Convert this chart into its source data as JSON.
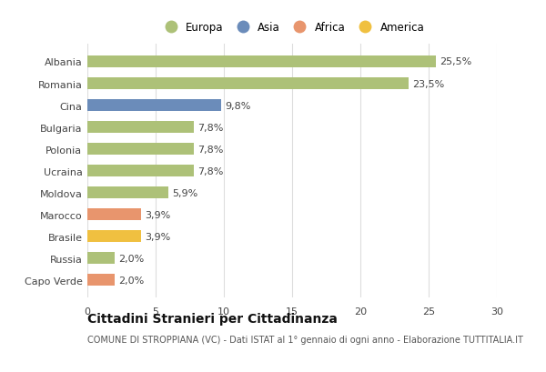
{
  "countries": [
    "Albania",
    "Romania",
    "Cina",
    "Bulgaria",
    "Polonia",
    "Ucraina",
    "Moldova",
    "Marocco",
    "Brasile",
    "Russia",
    "Capo Verde"
  ],
  "values": [
    25.5,
    23.5,
    9.8,
    7.8,
    7.8,
    7.8,
    5.9,
    3.9,
    3.9,
    2.0,
    2.0
  ],
  "labels": [
    "25,5%",
    "23,5%",
    "9,8%",
    "7,8%",
    "7,8%",
    "7,8%",
    "5,9%",
    "3,9%",
    "3,9%",
    "2,0%",
    "2,0%"
  ],
  "colors": [
    "#adc178",
    "#adc178",
    "#6b8cba",
    "#adc178",
    "#adc178",
    "#adc178",
    "#adc178",
    "#e8956d",
    "#f0c040",
    "#adc178",
    "#e8956d"
  ],
  "legend": [
    {
      "label": "Europa",
      "color": "#adc178"
    },
    {
      "label": "Asia",
      "color": "#6b8cba"
    },
    {
      "label": "Africa",
      "color": "#e8956d"
    },
    {
      "label": "America",
      "color": "#f0c040"
    }
  ],
  "xlim": [
    0,
    30
  ],
  "xticks": [
    0,
    5,
    10,
    15,
    20,
    25,
    30
  ],
  "title": "Cittadini Stranieri per Cittadinanza",
  "subtitle": "COMUNE DI STROPPIANA (VC) - Dati ISTAT al 1° gennaio di ogni anno - Elaborazione TUTTITALIA.IT",
  "background_color": "#ffffff",
  "grid_color": "#dddddd",
  "bar_height": 0.55,
  "label_fontsize": 8.0,
  "tick_fontsize": 8.0,
  "title_fontsize": 10,
  "subtitle_fontsize": 7.0,
  "legend_fontsize": 8.5
}
